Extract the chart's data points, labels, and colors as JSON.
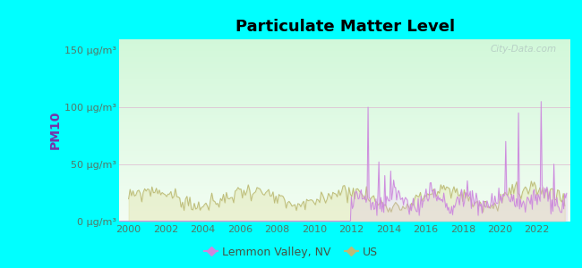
{
  "title": "Particulate Matter Level",
  "ylabel": "PM10",
  "background_color": "#00FFFF",
  "ylim": [
    0,
    160
  ],
  "yticks": [
    0,
    50,
    100,
    150
  ],
  "ytick_labels": [
    "0 μg/m³",
    "50 μg/m³",
    "100 μg/m³",
    "150 μg/m³"
  ],
  "xstart": 1999.5,
  "xend": 2023.8,
  "xticks": [
    2000,
    2002,
    2004,
    2006,
    2008,
    2010,
    2012,
    2014,
    2016,
    2018,
    2020,
    2022
  ],
  "lemmon_color": "#cc88dd",
  "us_color": "#bbbb77",
  "lemmon_fill": "#ddaaee",
  "us_fill": "#dddd99",
  "lemmon_label": "Lemmon Valley, NV",
  "us_label": "US",
  "watermark": "City-Data.com",
  "title_fontsize": 13,
  "tick_fontsize": 8,
  "ylabel_fontsize": 10,
  "legend_fontsize": 9
}
